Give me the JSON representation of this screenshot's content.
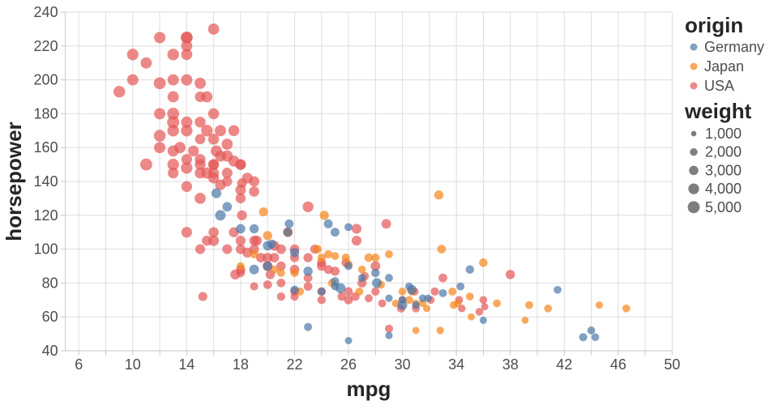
{
  "chart_data": {
    "type": "scatter",
    "title": "",
    "x_axis": {
      "title": "mpg",
      "domain": [
        5,
        50
      ],
      "grid_values": [
        6,
        8,
        10,
        12,
        14,
        16,
        18,
        20,
        22,
        24,
        26,
        28,
        30,
        32,
        34,
        36,
        38,
        40,
        42,
        44,
        46,
        48,
        50
      ],
      "label_values": [
        6,
        10,
        14,
        18,
        22,
        26,
        30,
        34,
        38,
        42,
        46,
        50
      ]
    },
    "y_axis": {
      "title": "horsepower",
      "domain": [
        40,
        240
      ],
      "grid_values": [
        40,
        60,
        80,
        100,
        120,
        140,
        160,
        180,
        200,
        220,
        240
      ]
    },
    "origin_legend": {
      "title": "origin",
      "entries": [
        {
          "label": "Germany",
          "color": "#4c78a8"
        },
        {
          "label": "Japan",
          "color": "#f58518"
        },
        {
          "label": "USA",
          "color": "#e45756"
        }
      ]
    },
    "weight_legend": {
      "title": "weight",
      "entries": [
        {
          "label": "1,000",
          "value": 1000
        },
        {
          "label": "2,000",
          "value": 2000
        },
        {
          "label": "3,000",
          "value": 3000
        },
        {
          "label": "4,000",
          "value": 4000
        },
        {
          "label": "5,000",
          "value": 5000
        }
      ]
    },
    "style": {
      "background": "#ffffff",
      "grid_color": "#dddddd",
      "axis_color": "#c8c8c8",
      "label_color": "#4d4d4d",
      "title_color": "#262626",
      "weight_symbol_color": "#7e7e7e",
      "point_opacity": 0.7
    },
    "point_format": [
      "mpg",
      "horsepower",
      "weight",
      "origin"
    ],
    "origin_codes": {
      "G": "Germany",
      "J": "Japan",
      "U": "USA"
    },
    "points": [
      [
        9,
        193,
        4732,
        "U"
      ],
      [
        10,
        200,
        4376,
        "U"
      ],
      [
        10,
        215,
        4615,
        "U"
      ],
      [
        11,
        210,
        4382,
        "U"
      ],
      [
        11,
        150,
        4997,
        "U"
      ],
      [
        12,
        160,
        4456,
        "U"
      ],
      [
        12,
        167,
        4906,
        "U"
      ],
      [
        12,
        180,
        4499,
        "U"
      ],
      [
        12,
        225,
        4499,
        "U"
      ],
      [
        12,
        198,
        4952,
        "U"
      ],
      [
        13,
        150,
        4699,
        "U"
      ],
      [
        13,
        158,
        4363,
        "U"
      ],
      [
        13,
        170,
        4746,
        "U"
      ],
      [
        13,
        175,
        5140,
        "U"
      ],
      [
        13,
        190,
        4422,
        "U"
      ],
      [
        13,
        145,
        3988,
        "U"
      ],
      [
        13,
        180,
        4955,
        "U"
      ],
      [
        13,
        215,
        4735,
        "U"
      ],
      [
        13,
        200,
        4376,
        "U"
      ],
      [
        13.5,
        160,
        4456,
        "U"
      ],
      [
        14,
        137,
        4042,
        "U"
      ],
      [
        14,
        153,
        4034,
        "U"
      ],
      [
        14,
        170,
        4654,
        "U"
      ],
      [
        14,
        175,
        4464,
        "U"
      ],
      [
        14,
        200,
        4464,
        "U"
      ],
      [
        14,
        215,
        4312,
        "U"
      ],
      [
        14,
        220,
        4354,
        "U"
      ],
      [
        14,
        225,
        4951,
        "U"
      ],
      [
        14,
        148,
        4657,
        "U"
      ],
      [
        14,
        225,
        4425,
        "U"
      ],
      [
        14.5,
        158,
        4054,
        "U"
      ],
      [
        15,
        198,
        4341,
        "U"
      ],
      [
        15,
        150,
        4096,
        "U"
      ],
      [
        15,
        165,
        3693,
        "U"
      ],
      [
        15,
        175,
        4100,
        "U"
      ],
      [
        15,
        145,
        4082,
        "U"
      ],
      [
        15,
        130,
        4295,
        "U"
      ],
      [
        15,
        190,
        3850,
        "U"
      ],
      [
        15,
        153,
        4034,
        "U"
      ],
      [
        15.5,
        145,
        4440,
        "U"
      ],
      [
        15.5,
        170,
        4668,
        "U"
      ],
      [
        15.5,
        190,
        4325,
        "U"
      ],
      [
        16,
        230,
        4278,
        "U"
      ],
      [
        16,
        150,
        4190,
        "U"
      ],
      [
        16,
        150,
        3433,
        "U"
      ],
      [
        16,
        165,
        4141,
        "U"
      ],
      [
        16,
        145,
        4055,
        "U"
      ],
      [
        16,
        142,
        4054,
        "U"
      ],
      [
        16,
        180,
        4190,
        "U"
      ],
      [
        16.2,
        158,
        4380,
        "U"
      ],
      [
        16.5,
        138,
        3940,
        "U"
      ],
      [
        16.5,
        155,
        4140,
        "U"
      ],
      [
        16.5,
        170,
        4380,
        "U"
      ],
      [
        17,
        140,
        3449,
        "U"
      ],
      [
        17,
        155,
        4502,
        "U"
      ],
      [
        17,
        145,
        3880,
        "U"
      ],
      [
        17,
        162,
        4335,
        "U"
      ],
      [
        17.5,
        152,
        4215,
        "U"
      ],
      [
        17.5,
        170,
        4165,
        "U"
      ],
      [
        18,
        130,
        3504,
        "U"
      ],
      [
        18,
        150,
        3436,
        "U"
      ],
      [
        18,
        150,
        4077,
        "U"
      ],
      [
        18,
        135,
        3870,
        "U"
      ],
      [
        18.1,
        139,
        3205,
        "U"
      ],
      [
        18.5,
        142,
        3940,
        "U"
      ],
      [
        19,
        140,
        3725,
        "U"
      ],
      [
        19,
        134,
        3620,
        "U"
      ],
      [
        14,
        110,
        3962,
        "U"
      ],
      [
        15,
        100,
        3336,
        "U"
      ],
      [
        15.5,
        105,
        3535,
        "U"
      ],
      [
        16,
        105,
        3897,
        "U"
      ],
      [
        16,
        110,
        3632,
        "U"
      ],
      [
        17,
        100,
        3329,
        "U"
      ],
      [
        17.6,
        85,
        3465,
        "U"
      ],
      [
        18,
        100,
        3288,
        "U"
      ],
      [
        18,
        105,
        3459,
        "U"
      ],
      [
        18,
        88,
        3021,
        "U"
      ],
      [
        18.5,
        98,
        3525,
        "U"
      ],
      [
        19,
        105,
        3380,
        "U"
      ],
      [
        19.2,
        105,
        3535,
        "U"
      ],
      [
        20,
        90,
        3420,
        "U"
      ],
      [
        20.5,
        102,
        3449,
        "U"
      ],
      [
        20.5,
        95,
        3155,
        "U"
      ],
      [
        21,
        100,
        3278,
        "U"
      ],
      [
        22,
        95,
        2833,
        "U"
      ],
      [
        22,
        100,
        3133,
        "U"
      ],
      [
        22,
        88,
        3060,
        "U"
      ],
      [
        23,
        95,
        2904,
        "U"
      ],
      [
        24,
        90,
        3003,
        "U"
      ],
      [
        24,
        92,
        2865,
        "U"
      ],
      [
        26.6,
        105,
        3380,
        "U"
      ],
      [
        28.8,
        115,
        3245,
        "U"
      ],
      [
        28,
        90,
        3264,
        "U"
      ],
      [
        17.5,
        110,
        3520,
        "U"
      ],
      [
        19,
        100,
        3282,
        "U"
      ],
      [
        20.2,
        85,
        2965,
        "U"
      ],
      [
        21.5,
        110,
        3245,
        "U"
      ],
      [
        18.1,
        120,
        3425,
        "U"
      ],
      [
        19.5,
        95,
        3155,
        "U"
      ],
      [
        20,
        95,
        3270,
        "U"
      ],
      [
        21,
        90,
        3003,
        "U"
      ],
      [
        23.5,
        100,
        2789,
        "U"
      ],
      [
        23,
        125,
        4080,
        "U"
      ],
      [
        26.6,
        112,
        3360,
        "U"
      ],
      [
        15.2,
        72,
        2835,
        "U"
      ],
      [
        18,
        86,
        2587,
        "U"
      ],
      [
        20,
        79,
        2625,
        "U"
      ],
      [
        21,
        80,
        2587,
        "U"
      ],
      [
        21,
        72,
        2401,
        "U"
      ],
      [
        22,
        72,
        2408,
        "U"
      ],
      [
        22,
        75,
        2542,
        "U"
      ],
      [
        23,
        78,
        2592,
        "U"
      ],
      [
        23,
        83,
        2639,
        "U"
      ],
      [
        24,
        75,
        2542,
        "U"
      ],
      [
        25,
        87,
        2979,
        "U"
      ],
      [
        25.5,
        72,
        2542,
        "U"
      ],
      [
        26,
        70,
        2693,
        "U"
      ],
      [
        26.5,
        72,
        2565,
        "U"
      ],
      [
        27,
        80,
        2865,
        "U"
      ],
      [
        28,
        75,
        2420,
        "U"
      ],
      [
        29,
        53,
        2337,
        "U"
      ],
      [
        30,
        70,
        2120,
        "U"
      ],
      [
        30.9,
        75,
        2230,
        "U"
      ],
      [
        31,
        65,
        2234,
        "U"
      ],
      [
        32.1,
        70,
        2120,
        "U"
      ],
      [
        34.2,
        70,
        2200,
        "U"
      ],
      [
        34.4,
        65,
        2045,
        "U"
      ],
      [
        35.7,
        63,
        2050,
        "U"
      ],
      [
        36.1,
        66,
        1800,
        "U"
      ],
      [
        36,
        70,
        2125,
        "U"
      ],
      [
        38,
        85,
        3015,
        "U"
      ],
      [
        27.2,
        84,
        2490,
        "U"
      ],
      [
        24.5,
        88,
        2720,
        "U"
      ],
      [
        29.9,
        65,
        2380,
        "U"
      ],
      [
        25.8,
        92,
        2620,
        "U"
      ],
      [
        19,
        78,
        2300,
        "U"
      ],
      [
        26,
        75,
        2635,
        "U"
      ],
      [
        27.5,
        71,
        2223,
        "U"
      ],
      [
        28.5,
        68,
        2155,
        "U"
      ],
      [
        24,
        70,
        2420,
        "U"
      ],
      [
        33,
        83,
        2639,
        "U"
      ],
      [
        32.4,
        75,
        2350,
        "U"
      ],
      [
        18,
        90,
        2124,
        "J"
      ],
      [
        19,
        97,
        2330,
        "J"
      ],
      [
        19.7,
        122,
        2807,
        "J"
      ],
      [
        20,
        108,
        2930,
        "J"
      ],
      [
        20.5,
        88,
        2279,
        "J"
      ],
      [
        21.5,
        110,
        2720,
        "J"
      ],
      [
        22.4,
        75,
        2265,
        "J"
      ],
      [
        23.7,
        100,
        2420,
        "J"
      ],
      [
        24.2,
        120,
        2930,
        "J"
      ],
      [
        24,
        95,
        2372,
        "J"
      ],
      [
        24.5,
        97,
        2300,
        "J"
      ],
      [
        25,
        96,
        2189,
        "J"
      ],
      [
        25.8,
        95,
        2328,
        "J"
      ],
      [
        27,
        88,
        2130,
        "J"
      ],
      [
        27.5,
        95,
        2560,
        "J"
      ],
      [
        28,
        95,
        2379,
        "J"
      ],
      [
        29,
        97,
        2171,
        "J"
      ],
      [
        29.5,
        68,
        1985,
        "J"
      ],
      [
        30,
        75,
        2155,
        "J"
      ],
      [
        30.5,
        70,
        2150,
        "J"
      ],
      [
        31,
        68,
        1970,
        "J"
      ],
      [
        31.5,
        68,
        1985,
        "J"
      ],
      [
        31.8,
        65,
        1836,
        "J"
      ],
      [
        31,
        52,
        1773,
        "J"
      ],
      [
        32.8,
        52,
        1985,
        "J"
      ],
      [
        32.7,
        132,
        2910,
        "J"
      ],
      [
        32.9,
        100,
        2615,
        "J"
      ],
      [
        33.7,
        75,
        2210,
        "J"
      ],
      [
        34.1,
        68,
        1985,
        "J"
      ],
      [
        35,
        72,
        2125,
        "J"
      ],
      [
        35.1,
        60,
        1760,
        "J"
      ],
      [
        36,
        92,
        2565,
        "J"
      ],
      [
        37,
        68,
        2125,
        "J"
      ],
      [
        39.4,
        67,
        2145,
        "J"
      ],
      [
        39.1,
        58,
        1755,
        "J"
      ],
      [
        40.8,
        65,
        2110,
        "J"
      ],
      [
        44.6,
        67,
        1850,
        "J"
      ],
      [
        46.6,
        65,
        2110,
        "J"
      ],
      [
        26.8,
        75,
        2210,
        "J"
      ],
      [
        28.4,
        79,
        2255,
        "J"
      ],
      [
        30.7,
        75,
        2210,
        "J"
      ],
      [
        33.8,
        67,
        2145,
        "J"
      ],
      [
        21,
        86,
        2226,
        "J"
      ],
      [
        22,
        86,
        2395,
        "J"
      ],
      [
        26,
        91,
        2288,
        "J"
      ],
      [
        24.8,
        80,
        2542,
        "J"
      ],
      [
        16.2,
        133,
        3410,
        "G"
      ],
      [
        16.5,
        120,
        3820,
        "G"
      ],
      [
        17,
        125,
        3140,
        "G"
      ],
      [
        19,
        112,
        2933,
        "G"
      ],
      [
        18,
        112,
        3085,
        "G"
      ],
      [
        20.3,
        103,
        2830,
        "G"
      ],
      [
        21.6,
        115,
        2671,
        "G"
      ],
      [
        20,
        102,
        3150,
        "G"
      ],
      [
        25,
        110,
        2694,
        "G"
      ],
      [
        24.5,
        115,
        2740,
        "G"
      ],
      [
        26,
        113,
        2234,
        "G"
      ],
      [
        19,
        88,
        3270,
        "G"
      ],
      [
        20,
        90,
        2937,
        "G"
      ],
      [
        23,
        87,
        2979,
        "G"
      ],
      [
        26,
        90,
        2265,
        "G"
      ],
      [
        28,
        86,
        2464,
        "G"
      ],
      [
        25,
        81,
        2400,
        "G"
      ],
      [
        24,
        75,
        2158,
        "G"
      ],
      [
        27,
        83,
        2202,
        "G"
      ],
      [
        30,
        70,
        2074,
        "G"
      ],
      [
        29,
        49,
        1867,
        "G"
      ],
      [
        26,
        46,
        1835,
        "G"
      ],
      [
        29,
        71,
        1937,
        "G"
      ],
      [
        25,
        78,
        2190,
        "G"
      ],
      [
        30.5,
        78,
        2190,
        "G"
      ],
      [
        31.5,
        71,
        1990,
        "G"
      ],
      [
        34.3,
        78,
        2188,
        "G"
      ],
      [
        33,
        74,
        2190,
        "G"
      ],
      [
        31.9,
        71,
        1925,
        "G"
      ],
      [
        30,
        67,
        3250,
        "G"
      ],
      [
        25.4,
        77,
        3530,
        "G"
      ],
      [
        30.7,
        76,
        3160,
        "G"
      ],
      [
        28.1,
        80,
        3230,
        "G"
      ],
      [
        36,
        58,
        1825,
        "G"
      ],
      [
        35,
        88,
        2500,
        "G"
      ],
      [
        31,
        67,
        2000,
        "G"
      ],
      [
        22,
        76,
        2511,
        "G"
      ],
      [
        22,
        98,
        2945,
        "G"
      ],
      [
        23,
        54,
        2254,
        "G"
      ],
      [
        29,
        83,
        2219,
        "G"
      ],
      [
        21.5,
        110,
        2600,
        "G"
      ],
      [
        41.5,
        76,
        2144,
        "G"
      ],
      [
        44,
        52,
        2130,
        "G"
      ],
      [
        43.4,
        48,
        2335,
        "G"
      ],
      [
        44.3,
        48,
        2085,
        "G"
      ]
    ]
  }
}
